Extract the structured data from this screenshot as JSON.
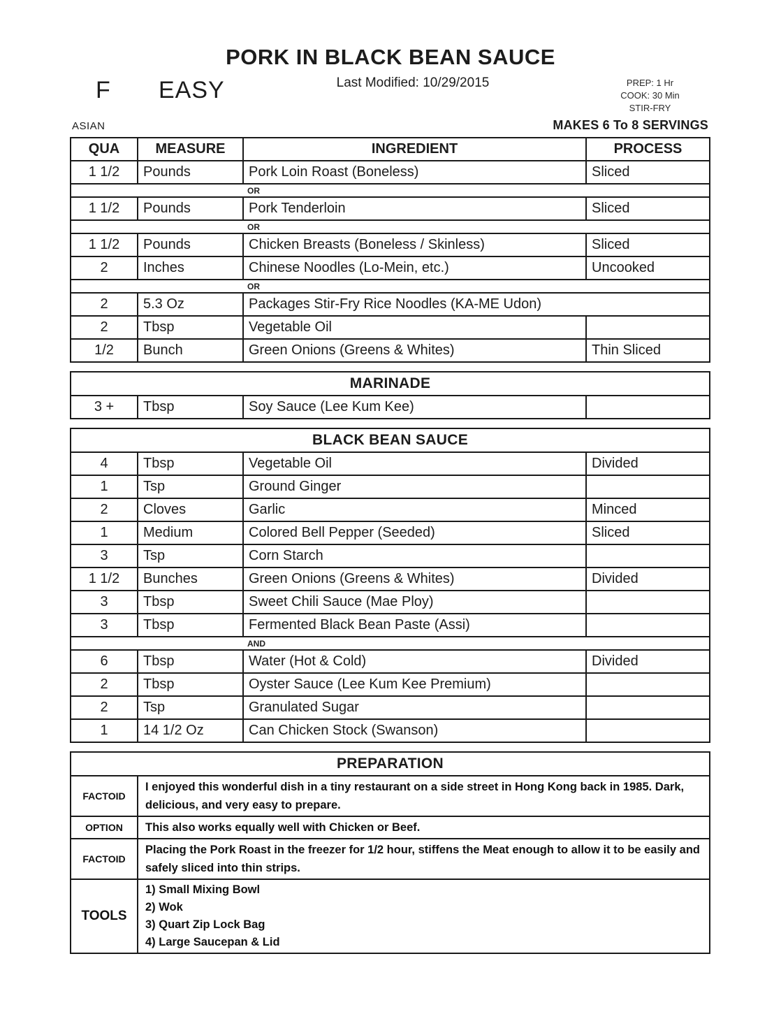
{
  "page": {
    "title": "PORK IN BLACK BEAN SAUCE",
    "last_modified": "Last Modified: 10/29/2015",
    "grade": "F",
    "difficulty": "EASY",
    "prep_time": "PREP: 1 Hr",
    "cook_time": "COOK: 30 Min",
    "method": "STIR-FRY",
    "cuisine": "ASIAN",
    "servings": "MAKES 6 To 8 SERVINGS"
  },
  "ingredients": {
    "columns": {
      "qua": "QUA",
      "measure": "MEASURE",
      "ingredient": "INGREDIENT",
      "process": "PROCESS"
    },
    "rows": [
      {
        "qua": "1 1/2",
        "measure": "Pounds",
        "ingredient": "Pork Loin Roast (Boneless)",
        "process": "Sliced"
      },
      {
        "label": "OR"
      },
      {
        "qua": "1 1/2",
        "measure": "Pounds",
        "ingredient": "Pork Tenderloin",
        "process": "Sliced"
      },
      {
        "label": "OR"
      },
      {
        "qua": "1 1/2",
        "measure": "Pounds",
        "ingredient": "Chicken Breasts (Boneless / Skinless)",
        "process": "Sliced"
      },
      {
        "qua": "2",
        "measure": "Inches",
        "ingredient": "Chinese Noodles (Lo-Mein, etc.)",
        "process": "Uncooked"
      },
      {
        "label": "OR"
      },
      {
        "qua": "2",
        "measure": "5.3 Oz",
        "ingredient": "Packages Stir-Fry Rice Noodles (KA-ME Udon)"
      },
      {
        "qua": "2",
        "measure": "Tbsp",
        "ingredient": "Vegetable Oil",
        "process": ""
      },
      {
        "qua": "1/2",
        "measure": "Bunch",
        "ingredient": "Green Onions (Greens & Whites)",
        "process": "Thin Sliced"
      }
    ]
  },
  "marinade": {
    "title": "MARINADE",
    "rows": [
      {
        "qua": "3 +",
        "measure": "Tbsp",
        "ingredient": "Soy Sauce (Lee Kum Kee)",
        "process": ""
      }
    ]
  },
  "black_bean_sauce": {
    "title": "BLACK BEAN SAUCE",
    "rows": [
      {
        "qua": "4",
        "measure": "Tbsp",
        "ingredient": "Vegetable Oil",
        "process": "Divided"
      },
      {
        "qua": "1",
        "measure": "Tsp",
        "ingredient": "Ground Ginger",
        "process": ""
      },
      {
        "qua": "2",
        "measure": "Cloves",
        "ingredient": "Garlic",
        "process": "Minced"
      },
      {
        "qua": "1",
        "measure": "Medium",
        "ingredient": "Colored Bell Pepper (Seeded)",
        "process": "Sliced"
      },
      {
        "qua": "3",
        "measure": "Tsp",
        "ingredient": "Corn Starch",
        "process": ""
      },
      {
        "qua": "1 1/2",
        "measure": "Bunches",
        "ingredient": "Green Onions (Greens & Whites)",
        "process": "Divided"
      },
      {
        "qua": "3",
        "measure": "Tbsp",
        "ingredient": "Sweet Chili Sauce (Mae Ploy)",
        "process": ""
      },
      {
        "qua": "3",
        "measure": "Tbsp",
        "ingredient": "Fermented Black Bean Paste (Assi)",
        "process": ""
      },
      {
        "label": "AND"
      },
      {
        "qua": "6",
        "measure": "Tbsp",
        "ingredient": "Water (Hot & Cold)",
        "process": "Divided"
      },
      {
        "qua": "2",
        "measure": "Tbsp",
        "ingredient": "Oyster Sauce (Lee Kum Kee Premium)",
        "process": ""
      },
      {
        "qua": "2",
        "measure": "Tsp",
        "ingredient": "Granulated Sugar",
        "process": ""
      },
      {
        "qua": "1",
        "measure": "14 1/2 Oz",
        "ingredient": "Can Chicken Stock (Swanson)",
        "process": ""
      }
    ]
  },
  "preparation": {
    "title": "PREPARATION",
    "rows": [
      {
        "label": "FACTOID",
        "text": "I enjoyed this wonderful dish in a tiny restaurant on a side street in Hong Kong back in 1985. Dark, delicious, and very easy to prepare."
      },
      {
        "label": "OPTION",
        "text": "This also works equally well with Chicken or Beef."
      },
      {
        "label": "FACTOID",
        "text": "Placing the Pork Roast in the freezer for 1/2 hour, stiffens the Meat enough to allow it to be easily and safely sliced into thin strips."
      },
      {
        "label": "TOOLS",
        "lines": [
          "1) Small Mixing Bowl",
          "2) Wok",
          "3) Quart Zip Lock Bag",
          "4) Large Saucepan & Lid"
        ]
      }
    ]
  }
}
